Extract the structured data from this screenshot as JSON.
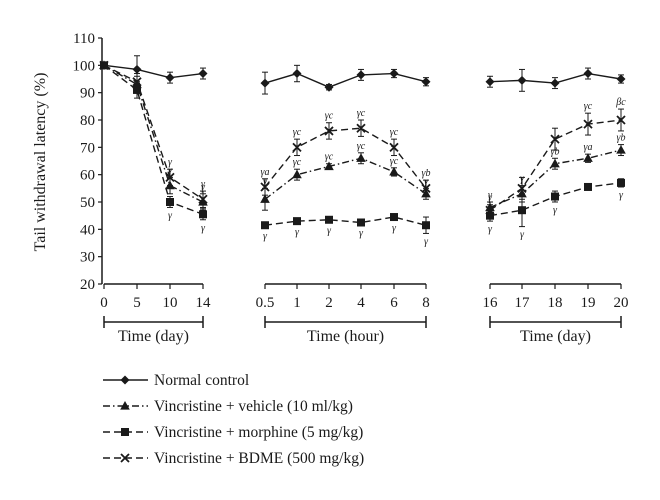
{
  "chart_data": {
    "type": "line",
    "ylabel": "Tail withdrawal latency (%)",
    "ylim": [
      20,
      110
    ],
    "yticks": [
      20,
      30,
      40,
      50,
      60,
      70,
      80,
      90,
      100,
      110
    ],
    "grid": false,
    "legend_position": "bottom",
    "panels": [
      {
        "xlabel": "Time (day)",
        "x": [
          "0",
          "5",
          "10",
          "14"
        ],
        "series": [
          {
            "name": "Normal control",
            "values": [
              100,
              98.5,
              95.5,
              97
            ],
            "errors": [
              1,
              5,
              2,
              2
            ],
            "sig": [
              "",
              "",
              "",
              ""
            ]
          },
          {
            "name": "Vincristine + vehicle (10 ml/kg)",
            "values": [
              100,
              93,
              56,
              50
            ],
            "errors": [
              1,
              3,
              3,
              3
            ],
            "sig": [
              "",
              "",
              "γ",
              "γ"
            ]
          },
          {
            "name": "Vincristine + morphine (5 mg/kg)",
            "values": [
              100,
              91,
              50,
              45.5
            ],
            "errors": [
              1,
              3,
              2,
              2
            ],
            "sig": [
              "",
              "",
              "γ",
              "γ"
            ]
          },
          {
            "name": "Vincristine + BDME (500 mg/kg)",
            "values": [
              100,
              94,
              59,
              51
            ],
            "errors": [
              1,
              3,
              3,
              3
            ],
            "sig": [
              "",
              "",
              "γ",
              "γ"
            ]
          }
        ]
      },
      {
        "xlabel": "Time (hour)",
        "x": [
          "0.5",
          "1",
          "2",
          "4",
          "6",
          "8"
        ],
        "series": [
          {
            "name": "Normal control",
            "values": [
              93.5,
              97,
              92,
              96.5,
              97,
              94
            ],
            "errors": [
              4,
              3,
              1,
              2,
              1.5,
              1.5
            ],
            "sig": [
              "",
              "",
              "",
              "",
              "",
              ""
            ]
          },
          {
            "name": "Vincristine + vehicle (10 ml/kg)",
            "values": [
              51,
              60,
              63,
              66,
              61,
              53
            ],
            "errors": [
              4,
              2,
              1,
              2,
              1.5,
              2
            ],
            "sig": [
              "γ",
              "γc",
              "γc",
              "γc",
              "γc",
              "γ"
            ]
          },
          {
            "name": "Vincristine + morphine (5 mg/kg)",
            "values": [
              41.5,
              43,
              43.5,
              42.5,
              44.5,
              41.5
            ],
            "errors": [
              1,
              1,
              1,
              1,
              1,
              3
            ],
            "sig": [
              "γ",
              "γ",
              "γ",
              "γ",
              "γ",
              "γ"
            ]
          },
          {
            "name": "Vincristine + BDME (500 mg/kg)",
            "values": [
              55.5,
              70,
              76,
              77,
              70,
              55
            ],
            "errors": [
              3,
              3,
              3,
              3,
              3,
              3
            ],
            "sig": [
              "γa",
              "γc",
              "γc",
              "γc",
              "γc",
              "γb"
            ]
          }
        ]
      },
      {
        "xlabel": "Time (day)",
        "x": [
          "16",
          "17",
          "18",
          "19",
          "20"
        ],
        "series": [
          {
            "name": "Normal control",
            "values": [
              94,
              94.5,
              93.5,
              97,
              95
            ],
            "errors": [
              2,
              4,
              2,
              2,
              1.5
            ],
            "sig": [
              "",
              "",
              "",
              "",
              ""
            ]
          },
          {
            "name": "Vincristine + vehicle (10 ml/kg)",
            "values": [
              48,
              53,
              64,
              66,
              69
            ],
            "errors": [
              2,
              3,
              2,
              1.5,
              2
            ],
            "sig": [
              "γ",
              "γ",
              "γb",
              "γa",
              "γb"
            ]
          },
          {
            "name": "Vincristine + morphine (5 mg/kg)",
            "values": [
              45,
              47,
              52,
              55.5,
              57
            ],
            "errors": [
              2,
              6,
              2,
              1,
              1.5
            ],
            "sig": [
              "γ",
              "γ",
              "γ",
              "",
              "γ"
            ]
          },
          {
            "name": "Vincristine + BDME (500 mg/kg)",
            "values": [
              47,
              55,
              73,
              78.5,
              80
            ],
            "errors": [
              2,
              4,
              4,
              4,
              4
            ],
            "sig": [
              "γ",
              "",
              "",
              "γc",
              "βc"
            ]
          }
        ]
      }
    ],
    "legend": [
      {
        "label": "Normal control",
        "marker": "diamond",
        "dash": "solid"
      },
      {
        "label": "Vincristine + vehicle (10 ml/kg)",
        "marker": "triangle",
        "dash": "dashdot"
      },
      {
        "label": "Vincristine + morphine (5 mg/kg)",
        "marker": "square",
        "dash": "dashed"
      },
      {
        "label": "Vincristine + BDME (500 mg/kg)",
        "marker": "cross",
        "dash": "dashed"
      }
    ]
  }
}
